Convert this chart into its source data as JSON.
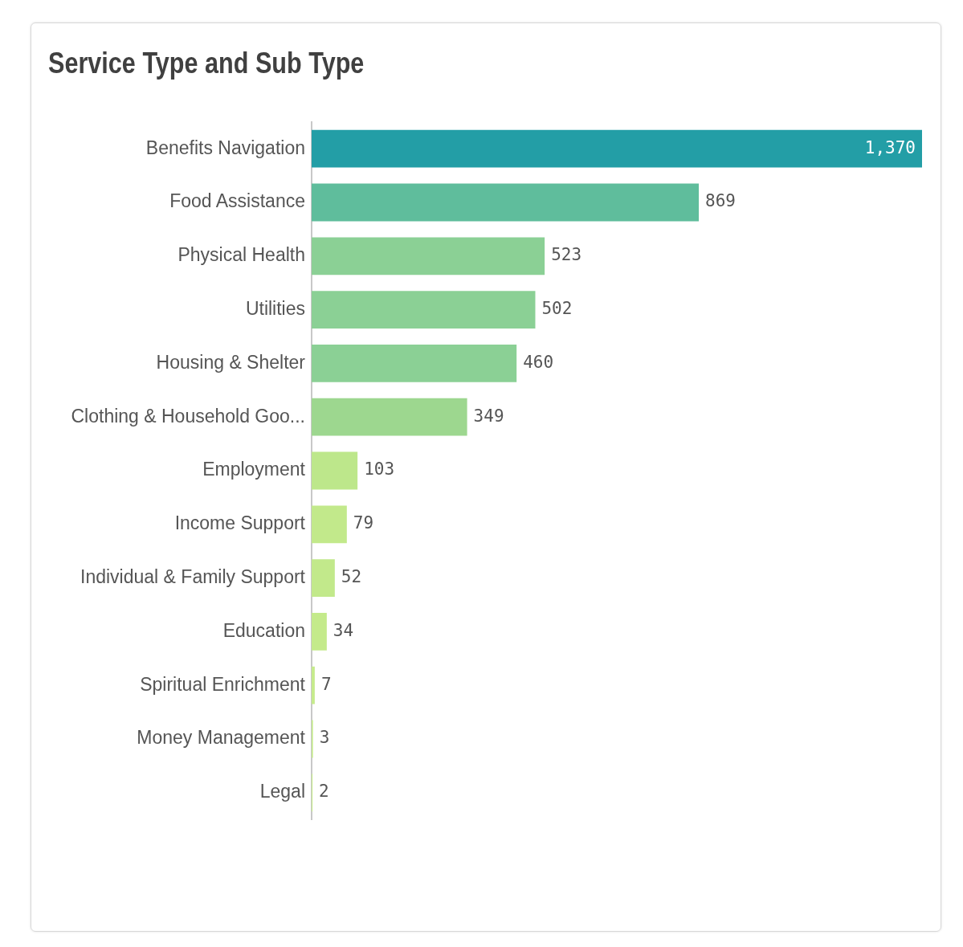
{
  "chart_data": {
    "type": "bar",
    "orientation": "horizontal",
    "title": "Service Type and Sub Type",
    "categories": [
      "Benefits Navigation",
      "Food Assistance",
      "Physical Health",
      "Utilities",
      "Housing & Shelter",
      "Clothing & Household Goo...",
      "Employment",
      "Income Support",
      "Individual & Family Support",
      "Education",
      "Spiritual Enrichment",
      "Money Management",
      "Legal"
    ],
    "values": [
      1370,
      869,
      523,
      502,
      460,
      349,
      103,
      79,
      52,
      34,
      7,
      3,
      2
    ],
    "value_labels": [
      "1,370",
      "869",
      "523",
      "502",
      "460",
      "349",
      "103",
      "79",
      "52",
      "34",
      "7",
      "3",
      "2"
    ],
    "colors": [
      "#239ea6",
      "#5fbd9c",
      "#8bd095",
      "#8bd095",
      "#8bd095",
      "#9dd78f",
      "#bde78b",
      "#c2e98b",
      "#c2e98b",
      "#c4ea8b",
      "#c6eb8c",
      "#c6eb8c",
      "#c6eb8c"
    ],
    "tick_labels": "y"
  }
}
